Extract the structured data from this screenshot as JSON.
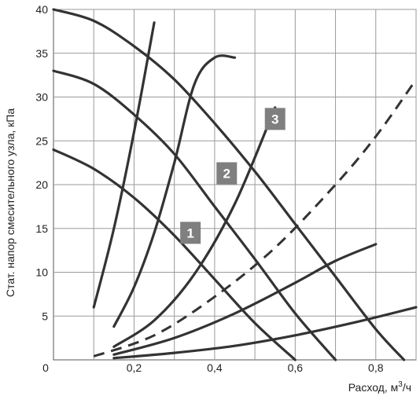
{
  "chart_data": {
    "type": "line",
    "ylabel": "Стат. напор смесительного узла, кПа",
    "xlabel_text": "Расход, м",
    "xlabel_sup": "3",
    "xlabel_tail": "/ч",
    "xlim": [
      0,
      0.9
    ],
    "ylim": [
      0,
      40
    ],
    "x_ticks": [
      {
        "v": 0,
        "label": "0"
      },
      {
        "v": 0.2,
        "label": "0,2"
      },
      {
        "v": 0.4,
        "label": "0,4"
      },
      {
        "v": 0.6,
        "label": "0,6"
      },
      {
        "v": 0.8,
        "label": "0,8"
      }
    ],
    "y_ticks": [
      {
        "v": 5,
        "label": "5"
      },
      {
        "v": 10,
        "label": "10"
      },
      {
        "v": 15,
        "label": "15"
      },
      {
        "v": 20,
        "label": "20"
      },
      {
        "v": 25,
        "label": "25"
      },
      {
        "v": 30,
        "label": "30"
      },
      {
        "v": 35,
        "label": "35"
      },
      {
        "v": 40,
        "label": "40"
      }
    ],
    "x_grid": [
      0.1,
      0.2,
      0.3,
      0.4,
      0.5,
      0.6,
      0.7,
      0.8,
      0.9
    ],
    "y_grid": [
      5,
      10,
      15,
      20,
      25,
      30,
      35,
      40
    ],
    "pump_curves": [
      {
        "label": "1",
        "points": [
          [
            0,
            24
          ],
          [
            0.1,
            21.8
          ],
          [
            0.2,
            18.5
          ],
          [
            0.3,
            14.2
          ],
          [
            0.4,
            9.2
          ],
          [
            0.5,
            4.2
          ],
          [
            0.6,
            0
          ]
        ],
        "badge": [
          0.34,
          14.5
        ]
      },
      {
        "label": "2",
        "points": [
          [
            0,
            33
          ],
          [
            0.1,
            31.5
          ],
          [
            0.2,
            28
          ],
          [
            0.3,
            23.5
          ],
          [
            0.4,
            17.5
          ],
          [
            0.5,
            11.5
          ],
          [
            0.6,
            5.3
          ],
          [
            0.7,
            0
          ]
        ],
        "badge": [
          0.43,
          21.3
        ]
      },
      {
        "label": "3",
        "points": [
          [
            0,
            40
          ],
          [
            0.1,
            38.7
          ],
          [
            0.2,
            35.8
          ],
          [
            0.3,
            32
          ],
          [
            0.4,
            27
          ],
          [
            0.5,
            21.5
          ],
          [
            0.6,
            15.5
          ],
          [
            0.7,
            9.5
          ],
          [
            0.8,
            3.5
          ],
          [
            0.87,
            0
          ]
        ],
        "badge": [
          0.55,
          27.5
        ]
      }
    ],
    "system_curves": [
      {
        "points": [
          [
            0.1,
            6
          ],
          [
            0.15,
            15
          ],
          [
            0.2,
            26
          ],
          [
            0.25,
            38.5
          ]
        ]
      },
      {
        "points": [
          [
            0.15,
            3.8
          ],
          [
            0.2,
            8.3
          ],
          [
            0.25,
            14.5
          ],
          [
            0.3,
            22.5
          ],
          [
            0.35,
            31.5
          ],
          [
            0.4,
            34.5
          ],
          [
            0.45,
            34.5
          ]
        ]
      },
      {
        "points": [
          [
            0.15,
            1.5
          ],
          [
            0.25,
            4.5
          ],
          [
            0.35,
            9.8
          ],
          [
            0.45,
            17.8
          ],
          [
            0.55,
            28.8
          ]
        ]
      },
      {
        "points": [
          [
            0.15,
            0.6
          ],
          [
            0.3,
            2.5
          ],
          [
            0.45,
            5.3
          ],
          [
            0.6,
            8.8
          ],
          [
            0.7,
            11.3
          ],
          [
            0.8,
            13.2
          ]
        ]
      },
      {
        "points": [
          [
            0.15,
            0.2
          ],
          [
            0.3,
            0.8
          ],
          [
            0.45,
            1.6
          ],
          [
            0.6,
            2.8
          ],
          [
            0.75,
            4.3
          ],
          [
            0.9,
            6
          ]
        ]
      }
    ],
    "dashed_curve": {
      "points": [
        [
          0.1,
          0.4
        ],
        [
          0.25,
          2.8
        ],
        [
          0.4,
          7.2
        ],
        [
          0.55,
          12.8
        ],
        [
          0.7,
          20
        ],
        [
          0.8,
          25.5
        ],
        [
          0.9,
          32
        ]
      ]
    }
  }
}
